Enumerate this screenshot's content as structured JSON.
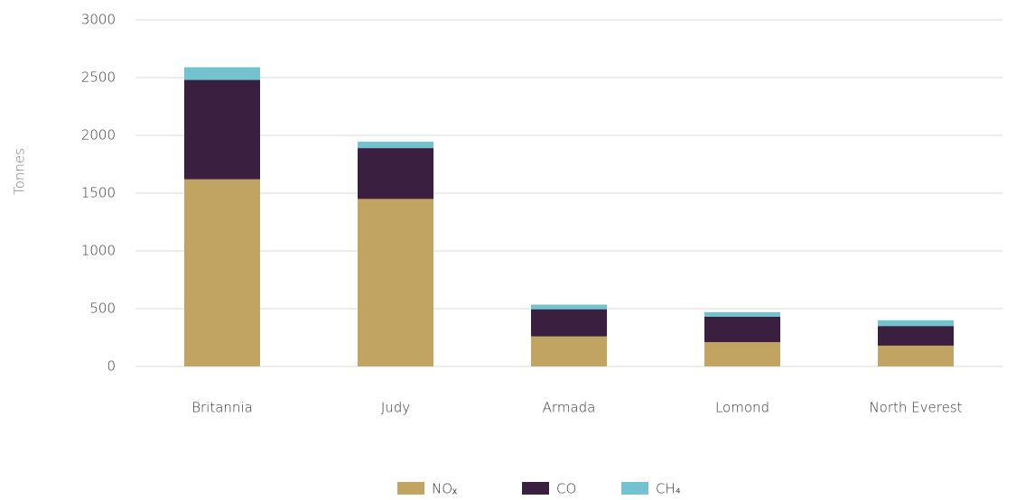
{
  "chart_data": {
    "type": "bar",
    "stacked": true,
    "y_label": "Tonnes",
    "categories": [
      "Britannia",
      "Judy",
      "Armada",
      "Lomond",
      "North Everest"
    ],
    "series": [
      {
        "name": "NOₓ",
        "color": "#c2a462",
        "values": [
          1620,
          1450,
          260,
          210,
          180
        ]
      },
      {
        "name": "CO",
        "color": "#3a1f40",
        "values": [
          860,
          440,
          235,
          220,
          170
        ]
      },
      {
        "name": "CH₄",
        "color": "#72c2d0",
        "values": [
          110,
          55,
          40,
          40,
          50
        ]
      }
    ],
    "ylim": [
      0,
      3000
    ],
    "yticks": [
      0,
      500,
      1000,
      1500,
      2000,
      2500,
      3000
    ],
    "grid": true,
    "legend": "bottom"
  }
}
